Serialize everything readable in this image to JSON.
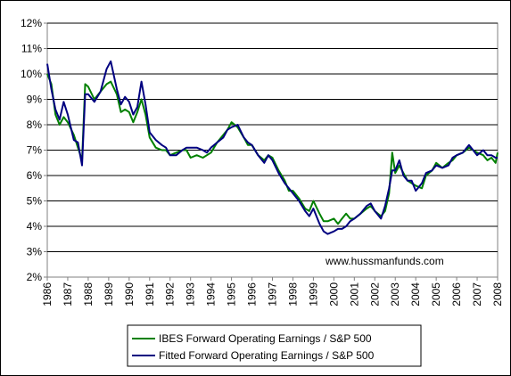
{
  "chart_data": {
    "type": "line",
    "title": "",
    "xlabel": "",
    "ylabel": "",
    "x_ticks": [
      "1986",
      "1987",
      "1988",
      "1989",
      "1990",
      "1991",
      "1992",
      "1993",
      "1994",
      "1995",
      "1996",
      "1997",
      "1998",
      "1999",
      "2000",
      "2001",
      "2002",
      "2003",
      "2004",
      "2005",
      "2006",
      "2007",
      "2008"
    ],
    "y_ticks": [
      "2%",
      "3%",
      "4%",
      "5%",
      "6%",
      "7%",
      "8%",
      "9%",
      "10%",
      "11%",
      "12%"
    ],
    "xlim": [
      1986,
      2008
    ],
    "ylim": [
      2,
      12
    ],
    "grid": "horizontal",
    "legend_position": "bottom",
    "watermark": "www.hussmanfunds.com",
    "series": [
      {
        "name": "IBES Forward Operating Earnings / S&P 500",
        "color": "#008000",
        "points": [
          [
            1986.0,
            10.0
          ],
          [
            1986.2,
            9.6
          ],
          [
            1986.4,
            8.4
          ],
          [
            1986.6,
            8.0
          ],
          [
            1986.8,
            8.3
          ],
          [
            1987.0,
            8.1
          ],
          [
            1987.3,
            7.6
          ],
          [
            1987.5,
            7.1
          ],
          [
            1987.7,
            6.6
          ],
          [
            1987.85,
            9.6
          ],
          [
            1988.0,
            9.5
          ],
          [
            1988.3,
            9.0
          ],
          [
            1988.6,
            9.3
          ],
          [
            1988.9,
            9.6
          ],
          [
            1989.1,
            9.7
          ],
          [
            1989.4,
            9.2
          ],
          [
            1989.6,
            8.5
          ],
          [
            1989.8,
            8.6
          ],
          [
            1990.0,
            8.5
          ],
          [
            1990.2,
            8.1
          ],
          [
            1990.4,
            8.5
          ],
          [
            1990.6,
            9.0
          ],
          [
            1990.8,
            8.4
          ],
          [
            1991.0,
            7.5
          ],
          [
            1991.3,
            7.1
          ],
          [
            1991.6,
            7.0
          ],
          [
            1991.8,
            7.0
          ],
          [
            1992.0,
            6.8
          ],
          [
            1992.3,
            6.9
          ],
          [
            1992.6,
            7.0
          ],
          [
            1992.8,
            7.0
          ],
          [
            1993.0,
            6.7
          ],
          [
            1993.3,
            6.8
          ],
          [
            1993.6,
            6.7
          ],
          [
            1993.8,
            6.8
          ],
          [
            1994.0,
            6.9
          ],
          [
            1994.3,
            7.3
          ],
          [
            1994.6,
            7.6
          ],
          [
            1994.8,
            7.8
          ],
          [
            1995.0,
            8.1
          ],
          [
            1995.3,
            7.9
          ],
          [
            1995.6,
            7.5
          ],
          [
            1995.8,
            7.2
          ],
          [
            1996.0,
            7.2
          ],
          [
            1996.3,
            6.8
          ],
          [
            1996.6,
            6.6
          ],
          [
            1996.8,
            6.8
          ],
          [
            1997.0,
            6.7
          ],
          [
            1997.3,
            6.2
          ],
          [
            1997.6,
            5.8
          ],
          [
            1997.8,
            5.4
          ],
          [
            1998.0,
            5.4
          ],
          [
            1998.3,
            5.1
          ],
          [
            1998.6,
            4.7
          ],
          [
            1998.8,
            4.6
          ],
          [
            1999.0,
            5.0
          ],
          [
            1999.3,
            4.5
          ],
          [
            1999.5,
            4.2
          ],
          [
            1999.7,
            4.2
          ],
          [
            2000.0,
            4.3
          ],
          [
            2000.2,
            4.1
          ],
          [
            2000.4,
            4.3
          ],
          [
            2000.6,
            4.5
          ],
          [
            2000.8,
            4.3
          ],
          [
            2001.0,
            4.3
          ],
          [
            2001.3,
            4.5
          ],
          [
            2001.6,
            4.7
          ],
          [
            2001.8,
            4.8
          ],
          [
            2002.0,
            4.6
          ],
          [
            2002.3,
            4.4
          ],
          [
            2002.5,
            4.6
          ],
          [
            2002.7,
            5.3
          ],
          [
            2002.85,
            6.9
          ],
          [
            2003.0,
            6.1
          ],
          [
            2003.2,
            6.4
          ],
          [
            2003.4,
            6.1
          ],
          [
            2003.6,
            5.8
          ],
          [
            2003.8,
            5.7
          ],
          [
            2004.0,
            5.6
          ],
          [
            2004.3,
            5.5
          ],
          [
            2004.5,
            6.0
          ],
          [
            2004.8,
            6.2
          ],
          [
            2005.0,
            6.5
          ],
          [
            2005.3,
            6.3
          ],
          [
            2005.6,
            6.5
          ],
          [
            2005.8,
            6.6
          ],
          [
            2006.0,
            6.8
          ],
          [
            2006.3,
            6.9
          ],
          [
            2006.6,
            7.1
          ],
          [
            2006.8,
            7.0
          ],
          [
            2007.0,
            6.9
          ],
          [
            2007.3,
            6.8
          ],
          [
            2007.5,
            6.6
          ],
          [
            2007.7,
            6.7
          ],
          [
            2007.9,
            6.5
          ],
          [
            2008.0,
            6.9
          ]
        ]
      },
      {
        "name": "Fitted Forward Operating Earnings / S&P 500",
        "color": "#000080",
        "points": [
          [
            1986.0,
            10.4
          ],
          [
            1986.2,
            9.4
          ],
          [
            1986.4,
            8.6
          ],
          [
            1986.6,
            8.2
          ],
          [
            1986.8,
            8.9
          ],
          [
            1987.0,
            8.4
          ],
          [
            1987.3,
            7.4
          ],
          [
            1987.5,
            7.3
          ],
          [
            1987.7,
            6.4
          ],
          [
            1987.85,
            9.2
          ],
          [
            1988.0,
            9.2
          ],
          [
            1988.3,
            8.9
          ],
          [
            1988.6,
            9.3
          ],
          [
            1988.9,
            10.2
          ],
          [
            1989.1,
            10.5
          ],
          [
            1989.4,
            9.4
          ],
          [
            1989.6,
            8.8
          ],
          [
            1989.8,
            9.1
          ],
          [
            1990.0,
            8.9
          ],
          [
            1990.2,
            8.4
          ],
          [
            1990.4,
            8.7
          ],
          [
            1990.6,
            9.7
          ],
          [
            1990.8,
            8.8
          ],
          [
            1991.0,
            7.7
          ],
          [
            1991.3,
            7.4
          ],
          [
            1991.6,
            7.2
          ],
          [
            1991.8,
            7.1
          ],
          [
            1992.0,
            6.8
          ],
          [
            1992.3,
            6.8
          ],
          [
            1992.6,
            7.0
          ],
          [
            1992.8,
            7.1
          ],
          [
            1993.0,
            7.1
          ],
          [
            1993.3,
            7.1
          ],
          [
            1993.6,
            7.0
          ],
          [
            1993.8,
            6.9
          ],
          [
            1994.0,
            7.1
          ],
          [
            1994.3,
            7.3
          ],
          [
            1994.6,
            7.5
          ],
          [
            1994.8,
            7.8
          ],
          [
            1995.0,
            7.9
          ],
          [
            1995.3,
            8.0
          ],
          [
            1995.6,
            7.5
          ],
          [
            1995.8,
            7.3
          ],
          [
            1996.0,
            7.2
          ],
          [
            1996.3,
            6.8
          ],
          [
            1996.6,
            6.5
          ],
          [
            1996.8,
            6.8
          ],
          [
            1997.0,
            6.6
          ],
          [
            1997.3,
            6.1
          ],
          [
            1997.6,
            5.7
          ],
          [
            1997.8,
            5.5
          ],
          [
            1998.0,
            5.3
          ],
          [
            1998.3,
            5.0
          ],
          [
            1998.6,
            4.6
          ],
          [
            1998.8,
            4.4
          ],
          [
            1999.0,
            4.7
          ],
          [
            1999.3,
            4.1
          ],
          [
            1999.5,
            3.8
          ],
          [
            1999.7,
            3.7
          ],
          [
            2000.0,
            3.8
          ],
          [
            2000.2,
            3.9
          ],
          [
            2000.4,
            3.9
          ],
          [
            2000.6,
            4.0
          ],
          [
            2000.8,
            4.2
          ],
          [
            2001.0,
            4.3
          ],
          [
            2001.3,
            4.5
          ],
          [
            2001.6,
            4.8
          ],
          [
            2001.8,
            4.9
          ],
          [
            2002.0,
            4.6
          ],
          [
            2002.3,
            4.3
          ],
          [
            2002.5,
            4.8
          ],
          [
            2002.7,
            5.5
          ],
          [
            2002.85,
            6.2
          ],
          [
            2003.0,
            6.2
          ],
          [
            2003.2,
            6.6
          ],
          [
            2003.4,
            6.0
          ],
          [
            2003.6,
            5.8
          ],
          [
            2003.8,
            5.8
          ],
          [
            2004.0,
            5.4
          ],
          [
            2004.3,
            5.7
          ],
          [
            2004.5,
            6.1
          ],
          [
            2004.8,
            6.2
          ],
          [
            2005.0,
            6.4
          ],
          [
            2005.3,
            6.3
          ],
          [
            2005.6,
            6.4
          ],
          [
            2005.8,
            6.7
          ],
          [
            2006.0,
            6.8
          ],
          [
            2006.3,
            6.9
          ],
          [
            2006.6,
            7.2
          ],
          [
            2006.8,
            7.0
          ],
          [
            2007.0,
            6.8
          ],
          [
            2007.3,
            7.0
          ],
          [
            2007.5,
            6.8
          ],
          [
            2007.7,
            6.8
          ],
          [
            2007.9,
            6.7
          ],
          [
            2008.0,
            6.7
          ]
        ]
      }
    ]
  }
}
